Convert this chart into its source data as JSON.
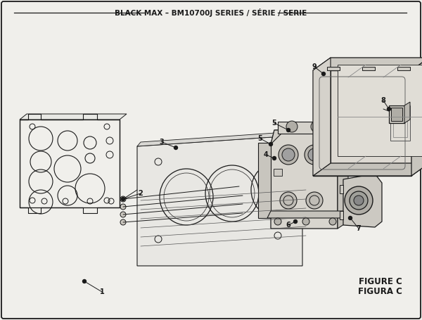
{
  "title": "BLACK MAX – BM10700J SERIES / SÉRIE / SERIE",
  "figure_label": "FIGURE C",
  "figura_label": "FIGURA C",
  "bg_color": "#f5f5f2",
  "border_color": "#1a1a1a",
  "line_color": "#1a1a1a",
  "text_color": "#1a1a1a",
  "title_fontsize": 7.5,
  "label_fontsize": 7.0,
  "figure_label_fontsize": 8.5
}
